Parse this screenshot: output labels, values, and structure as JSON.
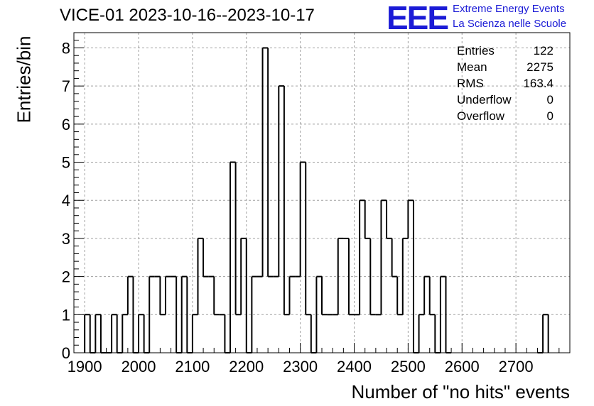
{
  "chart_data": {
    "type": "bar",
    "title": "VICE-01 2023-10-16--2023-10-17",
    "xlabel": "Number of \"no hits\" events",
    "ylabel": "Entries/bin",
    "xlim": [
      1880,
      2800
    ],
    "ylim": [
      0,
      8.4
    ],
    "bin_width": 10,
    "grid": true,
    "x_ticks": [
      "1900",
      "2000",
      "2100",
      "2200",
      "2300",
      "2400",
      "2500",
      "2600",
      "2700"
    ],
    "y_ticks": [
      "0",
      "1",
      "2",
      "3",
      "4",
      "5",
      "6",
      "7",
      "8"
    ],
    "bins": [
      {
        "x": 1900,
        "y": 1
      },
      {
        "x": 1910,
        "y": 0
      },
      {
        "x": 1920,
        "y": 1
      },
      {
        "x": 1930,
        "y": 0
      },
      {
        "x": 1940,
        "y": 0
      },
      {
        "x": 1950,
        "y": 1
      },
      {
        "x": 1960,
        "y": 0
      },
      {
        "x": 1970,
        "y": 1
      },
      {
        "x": 1980,
        "y": 2
      },
      {
        "x": 1990,
        "y": 0
      },
      {
        "x": 2000,
        "y": 1
      },
      {
        "x": 2010,
        "y": 0
      },
      {
        "x": 2020,
        "y": 2
      },
      {
        "x": 2030,
        "y": 2
      },
      {
        "x": 2040,
        "y": 1
      },
      {
        "x": 2050,
        "y": 2
      },
      {
        "x": 2060,
        "y": 2
      },
      {
        "x": 2070,
        "y": 0
      },
      {
        "x": 2080,
        "y": 2
      },
      {
        "x": 2090,
        "y": 0
      },
      {
        "x": 2100,
        "y": 1
      },
      {
        "x": 2110,
        "y": 3
      },
      {
        "x": 2120,
        "y": 2
      },
      {
        "x": 2130,
        "y": 2
      },
      {
        "x": 2140,
        "y": 1
      },
      {
        "x": 2150,
        "y": 1
      },
      {
        "x": 2160,
        "y": 0
      },
      {
        "x": 2170,
        "y": 5
      },
      {
        "x": 2180,
        "y": 1
      },
      {
        "x": 2190,
        "y": 3
      },
      {
        "x": 2200,
        "y": 0
      },
      {
        "x": 2210,
        "y": 2
      },
      {
        "x": 2220,
        "y": 2
      },
      {
        "x": 2230,
        "y": 8
      },
      {
        "x": 2240,
        "y": 2
      },
      {
        "x": 2250,
        "y": 2
      },
      {
        "x": 2260,
        "y": 7
      },
      {
        "x": 2270,
        "y": 1
      },
      {
        "x": 2280,
        "y": 2
      },
      {
        "x": 2290,
        "y": 2
      },
      {
        "x": 2300,
        "y": 5
      },
      {
        "x": 2310,
        "y": 1
      },
      {
        "x": 2320,
        "y": 0
      },
      {
        "x": 2330,
        "y": 2
      },
      {
        "x": 2340,
        "y": 1
      },
      {
        "x": 2350,
        "y": 1
      },
      {
        "x": 2360,
        "y": 1
      },
      {
        "x": 2370,
        "y": 3
      },
      {
        "x": 2380,
        "y": 3
      },
      {
        "x": 2390,
        "y": 1
      },
      {
        "x": 2400,
        "y": 1
      },
      {
        "x": 2410,
        "y": 4
      },
      {
        "x": 2420,
        "y": 3
      },
      {
        "x": 2430,
        "y": 1
      },
      {
        "x": 2440,
        "y": 1
      },
      {
        "x": 2450,
        "y": 4
      },
      {
        "x": 2460,
        "y": 3
      },
      {
        "x": 2470,
        "y": 2
      },
      {
        "x": 2480,
        "y": 1
      },
      {
        "x": 2490,
        "y": 3
      },
      {
        "x": 2500,
        "y": 4
      },
      {
        "x": 2510,
        "y": 0
      },
      {
        "x": 2520,
        "y": 1
      },
      {
        "x": 2530,
        "y": 2
      },
      {
        "x": 2540,
        "y": 1
      },
      {
        "x": 2550,
        "y": 0
      },
      {
        "x": 2560,
        "y": 2
      },
      {
        "x": 2570,
        "y": 0
      },
      {
        "x": 2740,
        "y": 0
      },
      {
        "x": 2750,
        "y": 1
      }
    ],
    "stats": [
      {
        "label": "Entries",
        "value": "122"
      },
      {
        "label": "Mean",
        "value": "2275"
      },
      {
        "label": "RMS",
        "value": "163.4"
      },
      {
        "label": "Underflow",
        "value": "0"
      },
      {
        "label": "Overflow",
        "value": "0"
      }
    ],
    "colors": {
      "line": "#000000",
      "grid": "#a0a0a0",
      "logo": "#1b1bd6"
    }
  },
  "logo": {
    "mark": "EEE",
    "line1": "Extreme Energy Events",
    "line2": "La Scienza nelle Scuole"
  }
}
